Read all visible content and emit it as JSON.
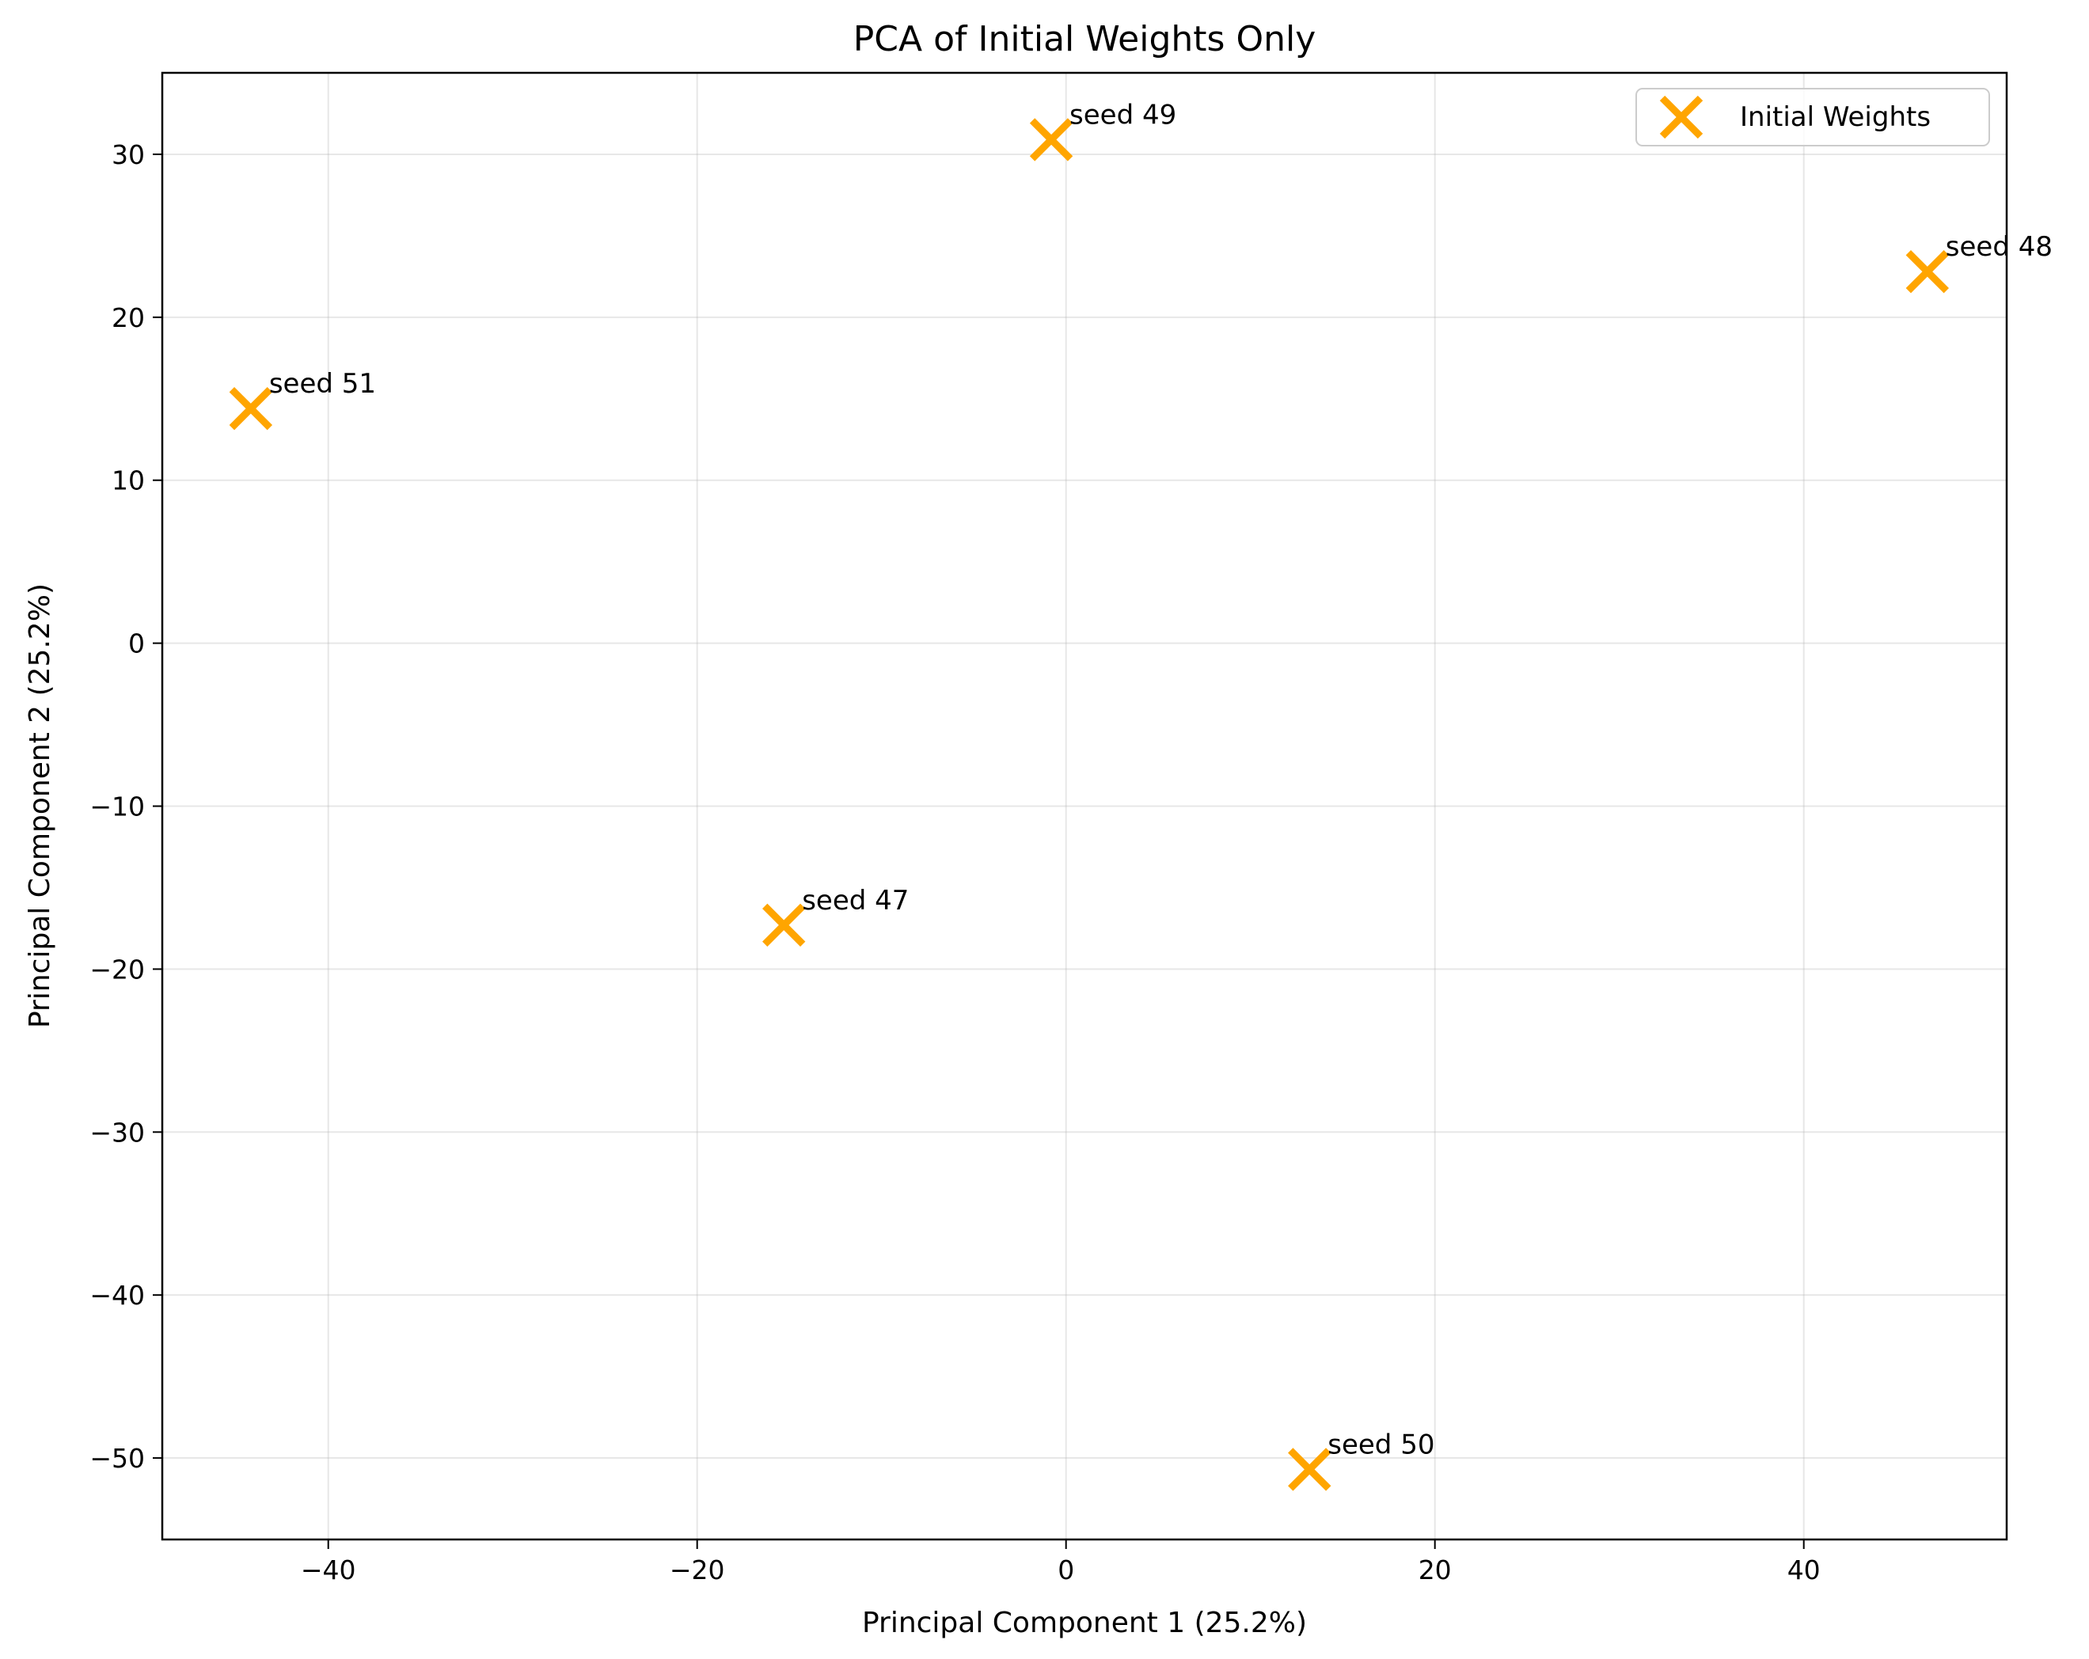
{
  "chart_data": {
    "type": "scatter",
    "title": "PCA of Initial Weights Only",
    "xlabel": "Principal Component 1 (25.2%)",
    "ylabel": "Principal Component 2 (25.2%)",
    "xlim": [
      -49,
      51
    ],
    "ylim": [
      -55,
      35
    ],
    "xticks": [
      -40,
      -20,
      0,
      20,
      40
    ],
    "yticks": [
      -50,
      -40,
      -30,
      -20,
      -10,
      0,
      10,
      20,
      30
    ],
    "grid": true,
    "legend_position": "top-right",
    "series": [
      {
        "name": "Initial Weights",
        "marker": "x",
        "color": "#FFA500",
        "points": [
          {
            "label": "seed 47",
            "x": -15.3,
            "y": -17.3
          },
          {
            "label": "seed 48",
            "x": 46.7,
            "y": 22.8
          },
          {
            "label": "seed 49",
            "x": -0.8,
            "y": 30.9
          },
          {
            "label": "seed 50",
            "x": 13.2,
            "y": -50.7
          },
          {
            "label": "seed 51",
            "x": -44.2,
            "y": 14.4
          }
        ]
      }
    ]
  }
}
